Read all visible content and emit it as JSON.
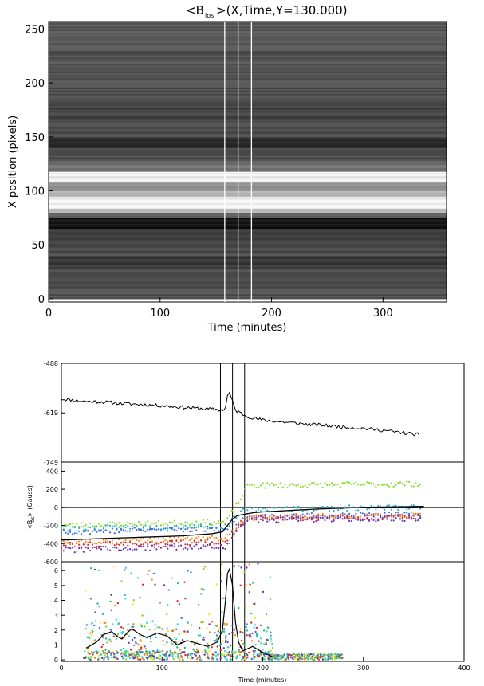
{
  "chart_data": [
    {
      "type": "heatmap",
      "title_main": "<B",
      "title_sub": "los",
      "title_rest": ">(X,Time,Y=130.000)",
      "xlabel": "Time (minutes)",
      "ylabel": "X position (pixels)",
      "xlim": [
        0,
        357
      ],
      "ylim": [
        -3,
        257
      ],
      "xticks": [
        "0",
        "100",
        "200",
        "300"
      ],
      "xtick_values": [
        0,
        100,
        200,
        300
      ],
      "yticks": [
        "0",
        "50",
        "100",
        "150",
        "200",
        "250"
      ],
      "ytick_values": [
        0,
        50,
        100,
        150,
        200,
        250
      ],
      "colormap": "grayscale",
      "bands": [
        {
          "x_range": [
            0,
            10
          ],
          "intensity": 0.32
        },
        {
          "x_range": [
            10,
            30
          ],
          "intensity": 0.28
        },
        {
          "x_range": [
            30,
            40
          ],
          "intensity": 0.22
        },
        {
          "x_range": [
            40,
            55
          ],
          "intensity": 0.3
        },
        {
          "x_range": [
            55,
            65
          ],
          "intensity": 0.25
        },
        {
          "x_range": [
            65,
            75
          ],
          "intensity": 0.08
        },
        {
          "x_range": [
            75,
            80
          ],
          "intensity": 0.35
        },
        {
          "x_range": [
            80,
            84
          ],
          "intensity": 0.75
        },
        {
          "x_range": [
            84,
            95
          ],
          "intensity": 0.95
        },
        {
          "x_range": [
            95,
            100
          ],
          "intensity": 0.7
        },
        {
          "x_range": [
            100,
            108
          ],
          "intensity": 0.55
        },
        {
          "x_range": [
            108,
            118
          ],
          "intensity": 0.92
        },
        {
          "x_range": [
            118,
            128
          ],
          "intensity": 0.45
        },
        {
          "x_range": [
            128,
            140
          ],
          "intensity": 0.3
        },
        {
          "x_range": [
            140,
            150
          ],
          "intensity": 0.18
        },
        {
          "x_range": [
            150,
            165
          ],
          "intensity": 0.3
        },
        {
          "x_range": [
            165,
            180
          ],
          "intensity": 0.26
        },
        {
          "x_range": [
            180,
            200
          ],
          "intensity": 0.3
        },
        {
          "x_range": [
            200,
            230
          ],
          "intensity": 0.33
        },
        {
          "x_range": [
            230,
            257
          ],
          "intensity": 0.36
        }
      ],
      "vertical_lines": [
        158,
        170,
        182
      ]
    },
    {
      "type": "line",
      "yticks": [
        "-488",
        "-619",
        "-749"
      ],
      "ytick_values": [
        -488,
        -619,
        -749
      ],
      "ylim": [
        -749,
        -488
      ],
      "xlim": [
        0,
        400
      ],
      "vertical_lines": [
        158,
        170,
        182
      ],
      "series": [
        {
          "color": "#000000",
          "x": [
            0,
            20,
            40,
            60,
            80,
            100,
            120,
            140,
            155,
            160,
            163,
            165,
            167,
            170,
            173,
            177,
            182,
            190,
            200,
            220,
            240,
            260,
            280,
            300,
            320,
            340,
            355
          ],
          "y": [
            -582,
            -588,
            -590,
            -594,
            -597,
            -600,
            -604,
            -608,
            -610,
            -612,
            -605,
            -575,
            -565,
            -590,
            -612,
            -618,
            -625,
            -632,
            -638,
            -643,
            -648,
            -652,
            -656,
            -660,
            -665,
            -672,
            -676
          ]
        }
      ]
    },
    {
      "type": "scatter",
      "ylabel": "<B",
      "ylabel_sub": "los",
      "ylabel_rest": "> (Gauss)",
      "yticks": [
        "400",
        "200",
        "0",
        "-200",
        "-400",
        "-600"
      ],
      "ytick_values": [
        400,
        200,
        0,
        -200,
        -400,
        -600
      ],
      "ylim": [
        -600,
        500
      ],
      "xlim": [
        0,
        400
      ],
      "hline": 0,
      "vertical_lines": [
        158,
        170,
        182
      ],
      "fit_line": {
        "color": "#000000",
        "x": [
          0,
          40,
          80,
          120,
          150,
          160,
          165,
          170,
          175,
          180,
          190,
          200,
          250,
          300,
          360
        ],
        "y": [
          -360,
          -345,
          -330,
          -315,
          -290,
          -270,
          -200,
          -130,
          -90,
          -80,
          -60,
          -50,
          -20,
          0,
          10
        ]
      },
      "series": [
        {
          "color": "#7fdc1e",
          "start": -200,
          "end": 260,
          "step_at": 172
        },
        {
          "color": "#25b0c8",
          "start": -240,
          "end": 0,
          "step_at": 170
        },
        {
          "color": "#3d6be0",
          "start": -270,
          "end": -80,
          "step_at": 170
        },
        {
          "color": "#f28d1c",
          "start": -380,
          "end": -90,
          "step_at": 170
        },
        {
          "color": "#d82c2c",
          "start": -420,
          "end": -100,
          "step_at": 170
        },
        {
          "color": "#6a2fb5",
          "start": -470,
          "end": -120,
          "step_at": 170
        }
      ]
    },
    {
      "type": "scatter",
      "yticks": [
        "6",
        "5",
        "4",
        "3",
        "2",
        "1",
        "0"
      ],
      "ytick_values": [
        6,
        5,
        4,
        3,
        2,
        1,
        0
      ],
      "ylim": [
        -0.1,
        6.6
      ],
      "xlabel": "Time (minutes)",
      "xticks": [
        "0",
        "100",
        "200",
        "300",
        "400"
      ],
      "xtick_values": [
        0,
        100,
        200,
        300,
        400
      ],
      "xlim": [
        0,
        400
      ],
      "vertical_lines": [
        158,
        170,
        182
      ],
      "smooth_line": {
        "color": "#000000",
        "x": [
          25,
          35,
          42,
          50,
          55,
          60,
          65,
          70,
          78,
          85,
          95,
          105,
          115,
          125,
          135,
          145,
          155,
          160,
          163,
          165,
          167,
          170,
          173,
          176,
          180,
          190,
          200,
          210
        ],
        "y": [
          0.8,
          1.2,
          1.7,
          1.9,
          1.6,
          1.4,
          1.8,
          2.1,
          1.7,
          1.5,
          1.8,
          1.6,
          1.0,
          1.3,
          1.1,
          0.9,
          1.2,
          2.0,
          4.0,
          5.8,
          6.1,
          5.0,
          2.5,
          1.2,
          0.6,
          0.9,
          0.5,
          0.2
        ]
      },
      "colors": [
        "#7fdc1e",
        "#25b0c8",
        "#3d6be0",
        "#f28d1c",
        "#d82c2c",
        "#6a2fb5",
        "#f2e61c",
        "#1ec27f",
        "#2ce0e0"
      ]
    }
  ]
}
